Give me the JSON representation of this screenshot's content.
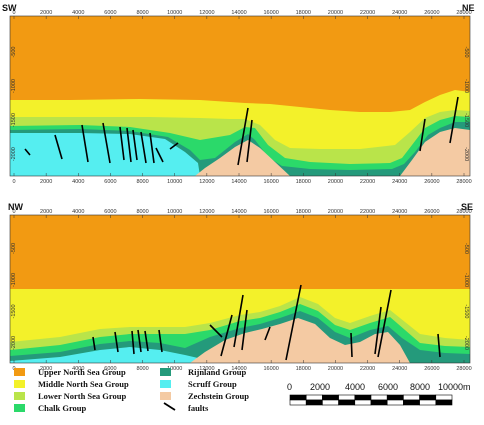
{
  "sections": [
    {
      "id": "top",
      "left_label": "SW",
      "right_label": "NE",
      "x_ticks": [
        "0",
        "2000",
        "4000",
        "6000",
        "8000",
        "10000",
        "12000",
        "14000",
        "16000",
        "18000",
        "20000",
        "22000",
        "24000",
        "26000",
        "28000"
      ],
      "y_ticks": [
        "-500",
        "-1000",
        "-1500",
        "-2000"
      ]
    },
    {
      "id": "bottom",
      "left_label": "NW",
      "right_label": "SE",
      "x_ticks": [
        "0",
        "2000",
        "4000",
        "6000",
        "8000",
        "10000",
        "12000",
        "14000",
        "16000",
        "18000",
        "20000",
        "22000",
        "24000",
        "26000",
        "28000"
      ],
      "y_ticks": [
        "-500",
        "-1000",
        "-1500",
        "-2000"
      ]
    }
  ],
  "legend": {
    "col1": [
      {
        "label": "Upper North Sea Group",
        "color": "#f29a12"
      },
      {
        "label": "Middle North Sea Group",
        "color": "#f3f12a"
      },
      {
        "label": "Lower North Sea Group",
        "color": "#b9e44a"
      },
      {
        "label": "Chalk Group",
        "color": "#2bd96a"
      }
    ],
    "col2": [
      {
        "label": "Rijnland Group",
        "color": "#249a7b"
      },
      {
        "label": "Scruff Group",
        "color": "#55eef0"
      },
      {
        "label": "Zechstein Group",
        "color": "#f4caa3"
      },
      {
        "label": "faults",
        "color": "#000000"
      }
    ]
  },
  "scale_bar": {
    "labels": [
      "0",
      "2000",
      "4000",
      "6000",
      "8000",
      "10000m"
    ]
  }
}
